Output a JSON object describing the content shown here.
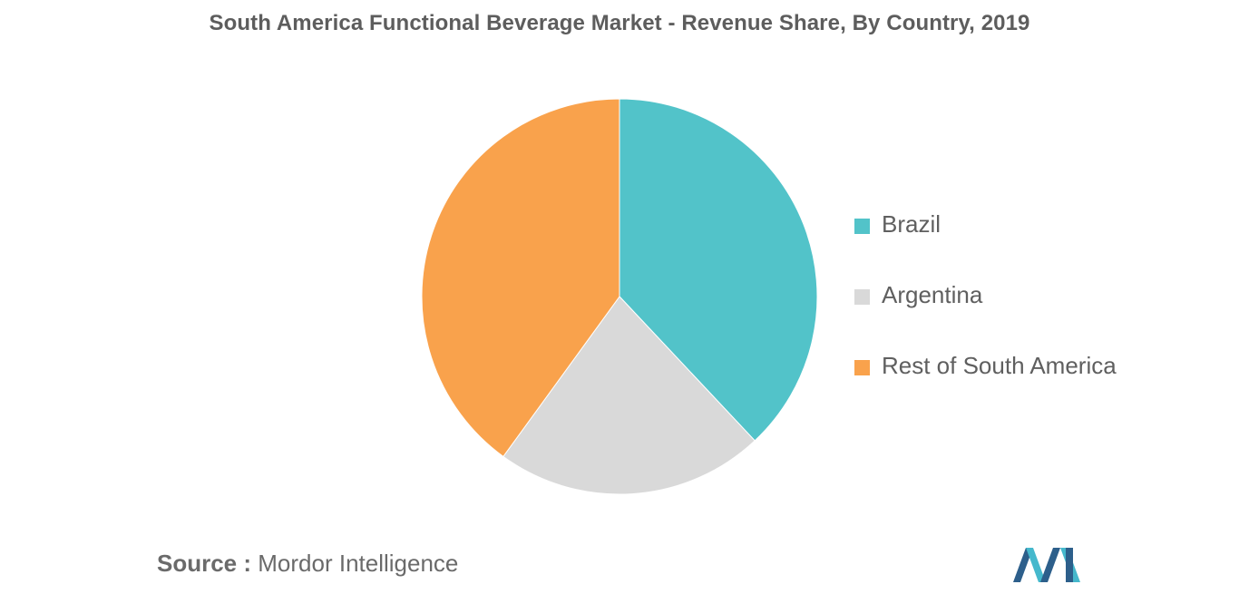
{
  "title": "South America Functional Beverage Market - Revenue Share, By Country, 2019",
  "chart_data": {
    "type": "pie",
    "title": "South America Functional Beverage Market - Revenue Share, By Country, 2019",
    "start_angle_deg": 0,
    "direction": "clockwise",
    "slices": [
      {
        "label": "Brazil",
        "value": 38,
        "color": "#52c3c9"
      },
      {
        "label": "Argentina",
        "value": 22,
        "color": "#d9d9d9"
      },
      {
        "label": "Rest of South America",
        "value": 40,
        "color": "#f9a24c"
      }
    ],
    "legend_position": "right"
  },
  "source": {
    "prefix": "Source :",
    "name": "Mordor Intelligence"
  },
  "logo": {
    "icon": "mordor-intelligence-logo",
    "colors": [
      "#2d5f8b",
      "#45b8cc"
    ]
  }
}
